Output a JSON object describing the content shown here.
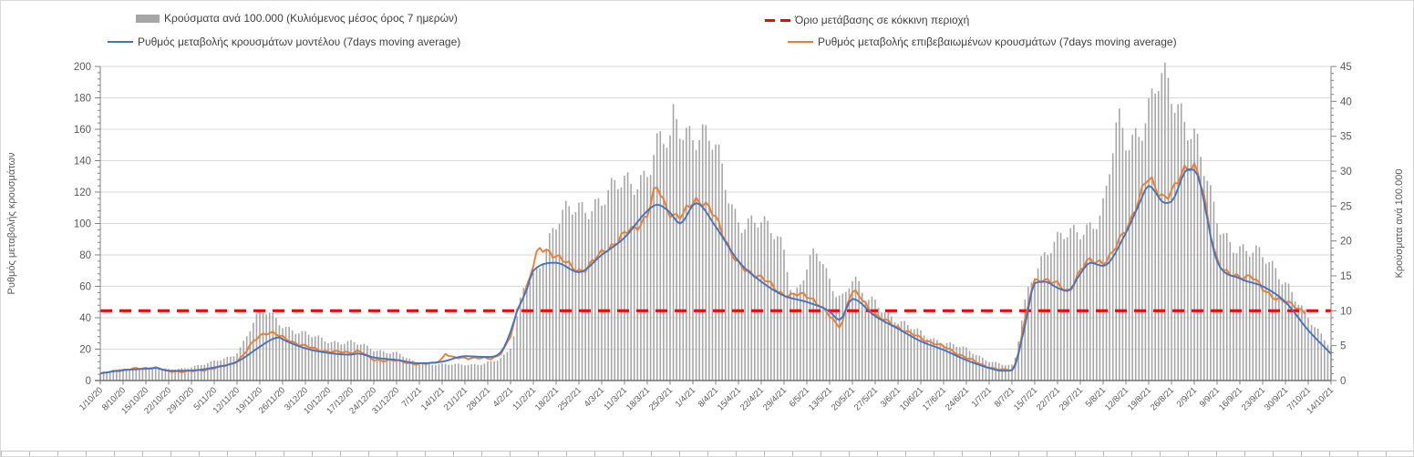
{
  "chart_data": {
    "type": "combo-bar-line",
    "title": "",
    "grid": "horizontal",
    "legend_position": "top-two-columns",
    "colors": {
      "bars": "#A6A6A6",
      "model_line": "#4472C4",
      "confirmed_line": "#ED7D31",
      "threshold": "#FF0000",
      "gridline": "#D9D9D9",
      "axis_line": "#808080",
      "baseline": "#595959",
      "tick_text": "#595959"
    },
    "axes": {
      "left": {
        "label": "Ρυθμός μεταβολής κρουσμάτων",
        "min": 0,
        "max": 200,
        "major_step": 20,
        "minor_step": 4,
        "tick_labels": [
          "0",
          "20",
          "40",
          "60",
          "80",
          "100",
          "120",
          "140",
          "160",
          "180",
          "200"
        ]
      },
      "right": {
        "label": "Κρούσματα ανά 100.000",
        "min": 0,
        "max": 45,
        "major_step": 5,
        "minor_step": 1,
        "tick_labels": [
          "0",
          "5",
          "10",
          "15",
          "20",
          "25",
          "30",
          "35",
          "40",
          "45"
        ]
      }
    },
    "x_tick_labels": [
      "1/10/20",
      "8/10/20",
      "15/10/20",
      "22/10/20",
      "29/10/20",
      "5/11/20",
      "12/11/20",
      "19/11/20",
      "26/11/20",
      "3/12/20",
      "10/12/20",
      "17/12/20",
      "24/12/20",
      "31/12/20",
      "7/1/21",
      "14/1/21",
      "21/1/21",
      "28/1/21",
      "4/2/21",
      "11/2/21",
      "18/2/21",
      "25/2/21",
      "4/3/21",
      "11/3/21",
      "18/3/21",
      "25/3/21",
      "1/4/21",
      "8/4/21",
      "15/4/21",
      "22/4/21",
      "29/4/21",
      "6/5/21",
      "13/5/21",
      "20/5/21",
      "27/5/21",
      "3/6/21",
      "10/6/21",
      "17/6/21",
      "24/6/21",
      "1/7/21",
      "8/7/21",
      "15/7/21",
      "22/7/21",
      "29/7/21",
      "5/8/21",
      "12/8/21",
      "19/8/21",
      "26/8/21",
      "2/9/21",
      "9/9/21",
      "16/9/21",
      "23/9/21",
      "30/9/21",
      "7/10/21",
      "14/10/21"
    ],
    "days_per_tick": 7,
    "total_days": 378,
    "threshold": {
      "label": "Όριο μετάβασης σε κόκκινη περιοχή",
      "axis": "right",
      "value": 10
    },
    "series": [
      {
        "name": "Κρούσματα ανά 100.000 (Κυλιόμενος μέσος όρος 7 ημερών)",
        "type": "bar",
        "axis": "right",
        "anchors": {
          "d": [
            0,
            7,
            14,
            21,
            28,
            35,
            42,
            49,
            51,
            56,
            63,
            70,
            77,
            84,
            91,
            98,
            105,
            112,
            119,
            126,
            128,
            130,
            133,
            140,
            147,
            154,
            161,
            168,
            172,
            175,
            176,
            183,
            189,
            196,
            203,
            210,
            213,
            217,
            220,
            224,
            228,
            231,
            235,
            238,
            245,
            252,
            259,
            266,
            273,
            280,
            284,
            287,
            294,
            301,
            308,
            313,
            315,
            322,
            326,
            329,
            336,
            343,
            350,
            357,
            364,
            371,
            378
          ],
          "v": [
            1.0,
            1.6,
            1.7,
            1.6,
            2.0,
            2.7,
            4.2,
            9.4,
            9.6,
            8.1,
            6.6,
            5.7,
            5.5,
            4.4,
            4.0,
            2.4,
            2.4,
            2.2,
            2.7,
            4.6,
            8.7,
            13.3,
            15.3,
            21.8,
            25.2,
            25.5,
            28.7,
            30.0,
            33.5,
            34.0,
            37.6,
            35.3,
            32.6,
            23.5,
            22.0,
            19.2,
            12.5,
            15.7,
            18.0,
            14.6,
            12.2,
            14.4,
            11.6,
            11.3,
            8.5,
            6.8,
            5.5,
            4.4,
            2.9,
            2.1,
            11.3,
            16.0,
            19.6,
            22.0,
            24.4,
            36.5,
            35.0,
            38.7,
            42.3,
            40.9,
            35.5,
            22.6,
            19.4,
            17.4,
            14.4,
            8.7,
            5.0
          ]
        }
      },
      {
        "name": "Ρυθμός μεταβολής κρουσμάτων μοντέλου (7days moving average)",
        "type": "line",
        "axis": "left",
        "anchors": {
          "d": [
            0,
            7,
            14,
            17,
            21,
            28,
            35,
            42,
            49,
            53,
            55,
            56,
            63,
            70,
            77,
            79,
            84,
            91,
            98,
            105,
            112,
            119,
            123,
            126,
            128,
            131,
            133,
            140,
            147,
            154,
            161,
            168,
            171,
            175,
            178,
            183,
            189,
            196,
            203,
            210,
            217,
            224,
            227,
            231,
            238,
            245,
            252,
            259,
            266,
            273,
            277,
            280,
            284,
            287,
            290,
            294,
            297,
            301,
            304,
            308,
            315,
            319,
            322,
            327,
            329,
            334,
            336,
            343,
            350,
            357,
            364,
            371,
            378
          ],
          "v": [
            4.6,
            6.6,
            7.5,
            8.0,
            6.2,
            6.4,
            8.3,
            12.0,
            21.5,
            26.5,
            27.5,
            26.3,
            20.5,
            17.6,
            16.5,
            17.2,
            14.7,
            13.1,
            11.0,
            12.0,
            15.5,
            15.0,
            18.0,
            31.0,
            44.0,
            58.0,
            70.0,
            75.0,
            69.0,
            80.0,
            91.0,
            108.0,
            112.0,
            107.0,
            100.0,
            113.0,
            98.0,
            76.0,
            63.0,
            54.0,
            50.0,
            44.0,
            38.5,
            52.0,
            41.0,
            33.0,
            25.0,
            19.5,
            13.0,
            8.0,
            6.2,
            6.5,
            35.0,
            62.0,
            63.0,
            59.0,
            57.0,
            68.0,
            75.0,
            73.0,
            94.0,
            112.0,
            124.0,
            113.0,
            114.0,
            134.5,
            134.0,
            76.0,
            65.0,
            60.0,
            50.0,
            32.0,
            17.0
          ]
        }
      },
      {
        "name": "Ρυθμός μεταβολής επιβεβαιωμένων κρουσμάτων (7days moving average)",
        "type": "line",
        "axis": "left",
        "jagged": true,
        "end_day": 370,
        "anchors": {
          "d": [
            0,
            7,
            14,
            17,
            21,
            28,
            35,
            42,
            49,
            52,
            56,
            63,
            70,
            77,
            79,
            84,
            91,
            98,
            105,
            106,
            108,
            112,
            119,
            126,
            128,
            131,
            133,
            135,
            140,
            147,
            154,
            161,
            168,
            171,
            174,
            178,
            183,
            189,
            196,
            203,
            210,
            217,
            224,
            227,
            231,
            238,
            245,
            252,
            259,
            266,
            273,
            277,
            280,
            284,
            287,
            290,
            294,
            297,
            301,
            304,
            308,
            315,
            319,
            322,
            327,
            329,
            334,
            336,
            343,
            350,
            353,
            357,
            364,
            370
          ],
          "v": [
            4.2,
            6.8,
            7.8,
            8.2,
            5.8,
            5.9,
            8.0,
            12.5,
            28.5,
            30.7,
            27.3,
            21.8,
            18.6,
            18.0,
            18.8,
            13.3,
            12.6,
            10.5,
            14.0,
            17.2,
            14.5,
            14.5,
            14.0,
            28.0,
            44.0,
            60.0,
            74.0,
            83.0,
            80.0,
            70.0,
            81.0,
            93.0,
            106.0,
            122.0,
            110.0,
            104.0,
            115.5,
            103.0,
            74.0,
            66.0,
            55.0,
            54.0,
            41.0,
            35.0,
            56.0,
            42.0,
            34.0,
            27.0,
            21.5,
            14.5,
            8.5,
            6.8,
            7.0,
            38.0,
            63.0,
            64.5,
            61.0,
            57.0,
            70.0,
            76.0,
            76.0,
            97.0,
            115.0,
            128.0,
            117.0,
            119.0,
            137.0,
            136.0,
            78.0,
            66.0,
            67.0,
            58.0,
            50.0,
            44.0
          ]
        }
      }
    ],
    "legend": [
      {
        "type": "bar",
        "label": "Κρούσματα ανά 100.000 (Κυλιόμενος μέσος όρος 7 ημερών)"
      },
      {
        "type": "threshold",
        "label": "Όριο μετάβασης σε κόκκινη περιοχή"
      },
      {
        "type": "line-model",
        "label": "Ρυθμός μεταβολής κρουσμάτων μοντέλου (7days moving average)"
      },
      {
        "type": "line-confirmed",
        "label": "Ρυθμός μεταβολής επιβεβαιωμένων κρουσμάτων (7days moving average)"
      }
    ]
  }
}
